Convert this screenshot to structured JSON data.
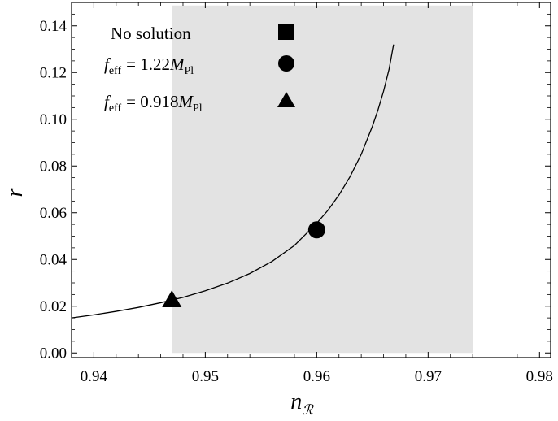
{
  "chart_data": {
    "type": "line",
    "title": "",
    "xlabel": "n",
    "xlabel_subscript": "ℛ",
    "ylabel": "r",
    "xlim": [
      0.938,
      0.981
    ],
    "ylim": [
      -0.002,
      0.15
    ],
    "xticks": [
      0.94,
      0.95,
      0.96,
      0.97,
      0.98
    ],
    "xtick_labels": [
      "0.94",
      "0.95",
      "0.96",
      "0.97",
      "0.98"
    ],
    "yticks": [
      0.0,
      0.02,
      0.04,
      0.06,
      0.08,
      0.1,
      0.12,
      0.14
    ],
    "ytick_labels": [
      "0.00",
      "0.02",
      "0.04",
      "0.06",
      "0.08",
      "0.10",
      "0.12",
      "0.14"
    ],
    "shaded_region": {
      "x": [
        0.947,
        0.974
      ],
      "color": "#e3e3e3"
    },
    "series": [
      {
        "style": "curve",
        "color": "#000000",
        "x": [
          0.938,
          0.94,
          0.942,
          0.944,
          0.946,
          0.948,
          0.95,
          0.952,
          0.954,
          0.956,
          0.958,
          0.96,
          0.961,
          0.962,
          0.963,
          0.964,
          0.965,
          0.9655,
          0.966,
          0.9665,
          0.9669
        ],
        "y": [
          0.015,
          0.0163,
          0.0178,
          0.0195,
          0.0215,
          0.0238,
          0.0266,
          0.0299,
          0.034,
          0.0392,
          0.046,
          0.0555,
          0.061,
          0.0676,
          0.0755,
          0.085,
          0.097,
          0.104,
          0.112,
          0.1215,
          0.132
        ]
      }
    ],
    "markers": [
      {
        "shape": "square",
        "x": null,
        "y": null
      },
      {
        "shape": "circle",
        "x": 0.96,
        "y": 0.0527
      },
      {
        "shape": "triangle",
        "x": 0.947,
        "y": 0.0227
      }
    ],
    "legend": {
      "placement": "top-left",
      "entries": [
        {
          "shape": "square",
          "text": "No solution"
        },
        {
          "shape": "circle",
          "prefix": "f",
          "prefix_sub": "eff",
          "value": "= 1.22",
          "unit": "M",
          "unit_sub": "Pl"
        },
        {
          "shape": "triangle",
          "prefix": "f",
          "prefix_sub": "eff",
          "value": "= 0.918",
          "unit": "M",
          "unit_sub": "Pl"
        }
      ]
    },
    "grid": false
  }
}
